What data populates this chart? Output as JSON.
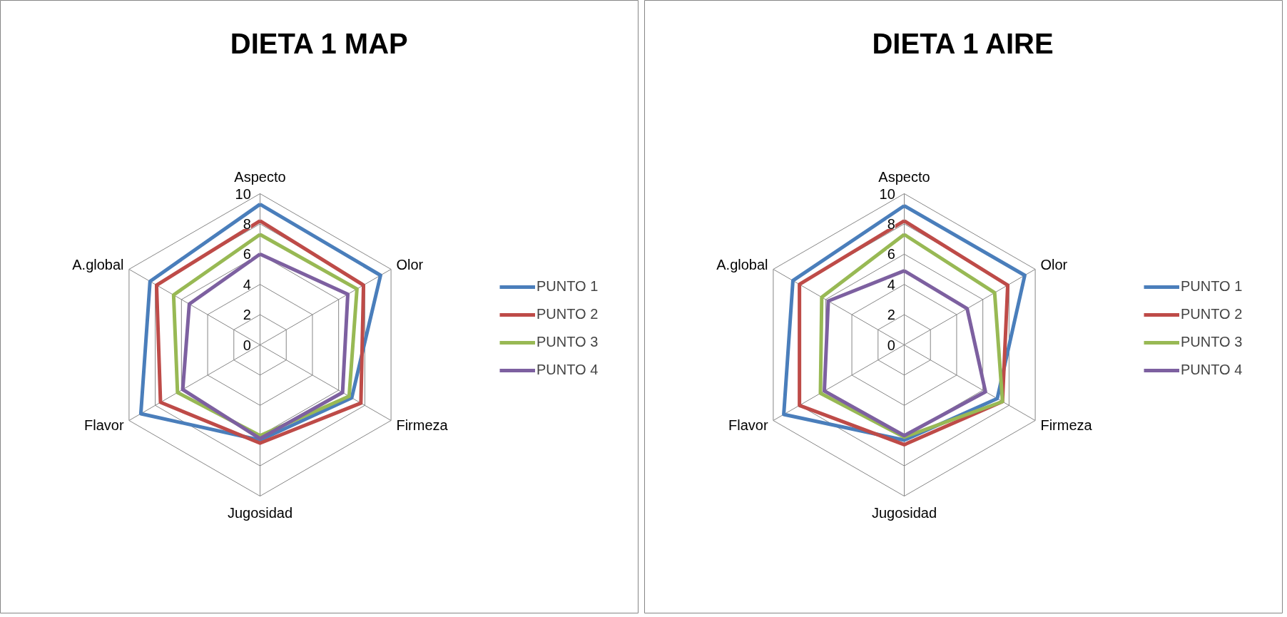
{
  "chart_data": [
    {
      "type": "radar",
      "title": "DIETA 1 MAP",
      "categories": [
        "Aspecto",
        "Olor",
        "Firmeza",
        "Jugosidad",
        "Flavor",
        "A.global"
      ],
      "ylim": [
        0,
        10
      ],
      "yticks": [
        0,
        2,
        4,
        6,
        8,
        10
      ],
      "grid": true,
      "legend": "right",
      "line_style": "solid",
      "marker": "none",
      "series": [
        {
          "name": "PUNTO 1",
          "color": "#4a7ebb",
          "values": [
            9.3,
            9.2,
            7.0,
            6.3,
            9.1,
            8.4
          ]
        },
        {
          "name": "PUNTO 2",
          "color": "#be4b48",
          "values": [
            8.2,
            7.9,
            7.7,
            6.5,
            7.6,
            7.9
          ]
        },
        {
          "name": "PUNTO 3",
          "color": "#98b954",
          "values": [
            7.3,
            7.4,
            6.8,
            6.0,
            6.3,
            6.6
          ]
        },
        {
          "name": "PUNTO 4",
          "color": "#7d60a0",
          "values": [
            6.0,
            6.7,
            6.3,
            6.2,
            5.9,
            5.4
          ]
        }
      ]
    },
    {
      "type": "radar",
      "title": "DIETA 1 AIRE",
      "categories": [
        "Aspecto",
        "Olor",
        "Firmeza",
        "Jugosidad",
        "Flavor",
        "A.global"
      ],
      "ylim": [
        0,
        10
      ],
      "yticks": [
        0,
        2,
        4,
        6,
        8,
        10
      ],
      "grid": true,
      "legend": "right",
      "line_style": "solid",
      "marker": "none",
      "series": [
        {
          "name": "PUNTO 1",
          "color": "#4a7ebb",
          "values": [
            9.2,
            9.2,
            7.1,
            6.3,
            9.2,
            8.5
          ]
        },
        {
          "name": "PUNTO 2",
          "color": "#be4b48",
          "values": [
            8.2,
            7.9,
            7.5,
            6.6,
            8.0,
            8.0
          ]
        },
        {
          "name": "PUNTO 3",
          "color": "#98b954",
          "values": [
            7.3,
            6.9,
            7.5,
            6.1,
            6.4,
            6.3
          ]
        },
        {
          "name": "PUNTO 4",
          "color": "#7d60a0",
          "values": [
            4.9,
            4.8,
            6.2,
            6.0,
            6.1,
            5.8
          ]
        }
      ]
    }
  ]
}
